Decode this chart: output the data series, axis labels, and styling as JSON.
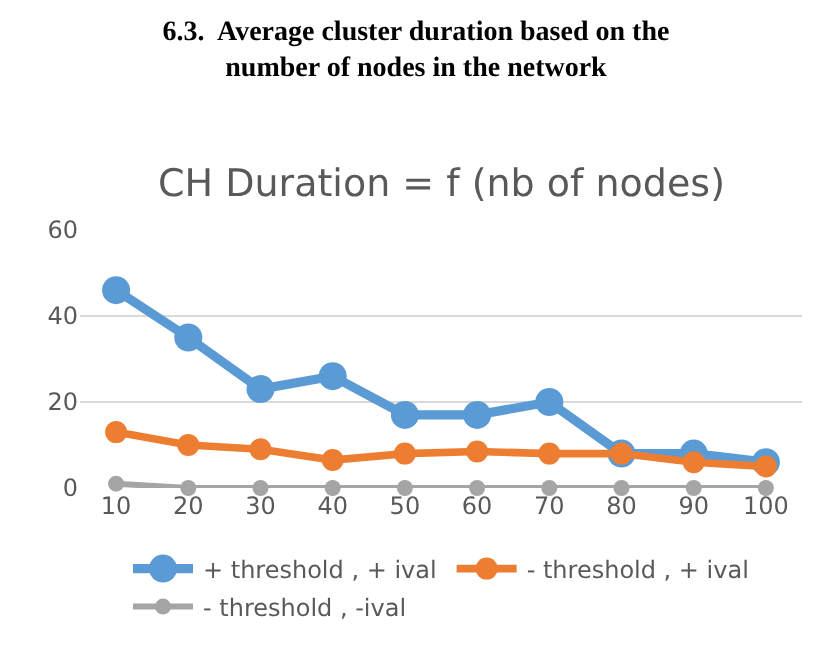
{
  "chart_data": {
    "type": "line",
    "title": "6.3.  Average cluster duration based on the\nnumber of nodes in the network",
    "subtitle": "CH Duration = f (nb of nodes)",
    "categories": [
      "10",
      "20",
      "30",
      "40",
      "50",
      "60",
      "70",
      "80",
      "90",
      "100"
    ],
    "series": [
      {
        "name": "+ threshold , + ival",
        "color": "#5b9bd5",
        "values": [
          46,
          35,
          23,
          26,
          17,
          17,
          20,
          8,
          8,
          6
        ]
      },
      {
        "name": "- threshold , + ival",
        "color": "#ed7d31",
        "values": [
          13,
          10,
          9,
          6.5,
          8,
          8.5,
          8,
          8,
          6,
          5
        ]
      },
      {
        "name": "- threshold , -ival",
        "color": "#a5a5a5",
        "values": [
          1,
          0,
          0,
          0,
          0,
          0,
          0,
          0,
          0,
          0
        ]
      }
    ],
    "ylim": [
      0,
      60
    ],
    "yticks": [
      0,
      20,
      40,
      60
    ],
    "grid": "y",
    "legend": "bottom",
    "marker": "circle",
    "line_style": "solid"
  }
}
